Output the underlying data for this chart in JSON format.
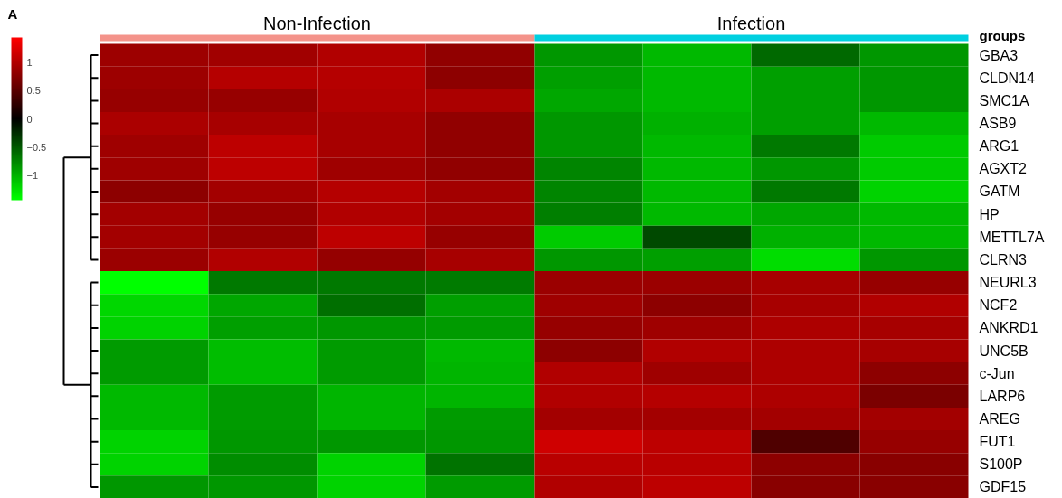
{
  "chart_data": {
    "type": "heatmap",
    "categories": [
      null,
      null,
      null,
      null,
      null,
      null,
      null,
      null
    ],
    "y_categories": [
      "GBA3",
      "CLDN14",
      "SMC1A",
      "ASB9",
      "ARG1",
      "AGXT2",
      "GATM",
      "HP",
      "METTL7A",
      "CLRN3",
      "NEURL3",
      "NCF2",
      "ANKRD1",
      "UNC5B",
      "c-Jun",
      "LARP6",
      "AREG",
      "FUT1",
      "S100P",
      "GDF15"
    ],
    "cells": [
      [
        0.89,
        0.91,
        1.0,
        0.82,
        -0.85,
        -1.05,
        -0.6,
        -0.85
      ],
      [
        0.89,
        1.02,
        1.02,
        0.8,
        -0.9,
        -1.05,
        -0.9,
        -0.85
      ],
      [
        0.85,
        0.85,
        1.0,
        0.97,
        -0.95,
        -1.05,
        -0.9,
        -0.85
      ],
      [
        0.97,
        0.95,
        0.95,
        0.82,
        -0.85,
        -1.0,
        -0.9,
        -1.05
      ],
      [
        0.9,
        1.07,
        0.95,
        0.82,
        -0.85,
        -1.05,
        -0.68,
        -1.15
      ],
      [
        0.9,
        1.07,
        0.9,
        0.82,
        -0.75,
        -1.05,
        -0.85,
        -1.15
      ],
      [
        0.8,
        0.92,
        1.02,
        0.92,
        -0.75,
        -1.05,
        -0.68,
        -1.2
      ],
      [
        0.92,
        0.85,
        1.0,
        0.92,
        -0.72,
        -1.05,
        -0.95,
        -1.05
      ],
      [
        0.92,
        0.85,
        1.07,
        0.85,
        -1.15,
        -0.41,
        -1.0,
        -1.05
      ],
      [
        0.88,
        1.0,
        0.84,
        0.95,
        -0.85,
        -0.9,
        -1.25,
        -0.85
      ],
      [
        -1.45,
        -0.68,
        -0.68,
        -0.7,
        0.88,
        0.88,
        0.95,
        0.85
      ],
      [
        -1.22,
        -0.95,
        -0.63,
        -0.9,
        0.9,
        0.8,
        0.95,
        1.0
      ],
      [
        -1.2,
        -0.9,
        -0.85,
        -0.88,
        0.85,
        0.9,
        0.98,
        0.95
      ],
      [
        -0.88,
        -1.07,
        -0.88,
        -1.05,
        0.8,
        1.0,
        0.98,
        0.95
      ],
      [
        -0.88,
        -1.07,
        -0.88,
        -1.03,
        1.0,
        0.9,
        0.98,
        0.8
      ],
      [
        -1.05,
        -0.88,
        -1.03,
        -1.03,
        1.0,
        1.02,
        0.98,
        0.7
      ],
      [
        -1.05,
        -0.88,
        -1.03,
        -0.88,
        0.92,
        0.92,
        0.92,
        0.92
      ],
      [
        -1.2,
        -0.85,
        -0.85,
        -0.85,
        1.17,
        1.07,
        0.45,
        0.85
      ],
      [
        -1.2,
        -0.8,
        -1.2,
        -0.65,
        1.05,
        1.05,
        0.8,
        0.78
      ],
      [
        -0.85,
        -0.85,
        -1.2,
        -0.88,
        1.0,
        1.07,
        0.78,
        0.78
      ]
    ],
    "clim": [
      -1.45,
      1.45
    ],
    "cticks": [
      {
        "value": -1,
        "label": "−1"
      },
      {
        "value": -0.5,
        "label": "−0.5"
      },
      0,
      0.5,
      1
    ],
    "annotations": [
      "A",
      "groups",
      "Non-Infection",
      "Infection"
    ]
  }
}
